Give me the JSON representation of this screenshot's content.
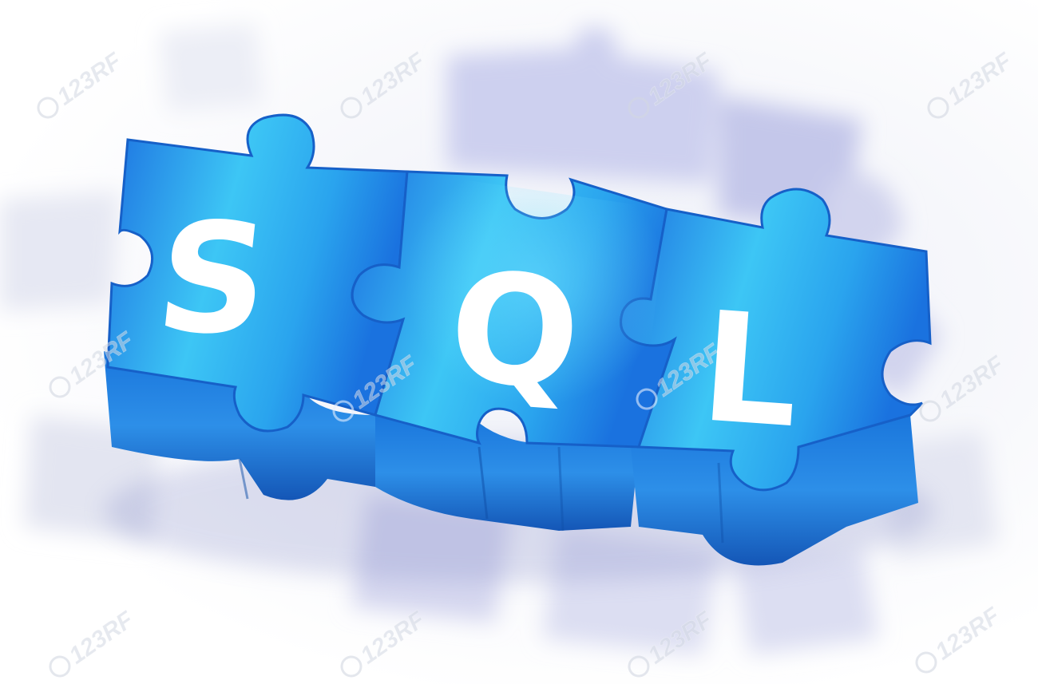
{
  "image": {
    "subject": "Three blue 3D jigsaw puzzle pieces with white letters",
    "colors": {
      "piece_top": "#1f7fe6",
      "piece_highlight": "#3fc8f4",
      "piece_side": "#1560c0",
      "letter": "#ffffff",
      "background": "#ffffff",
      "background_pieces": "#c9cde8"
    }
  },
  "puzzle": {
    "letters": [
      "S",
      "Q",
      "L"
    ]
  },
  "watermark": {
    "text": "123RF"
  }
}
